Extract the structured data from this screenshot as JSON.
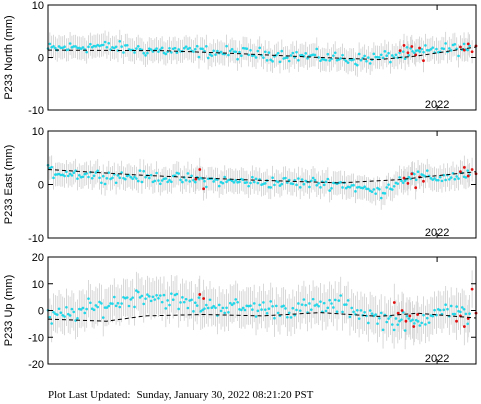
{
  "footer": {
    "label": "Plot Last Updated:",
    "timestamp": "Sunday, January 30, 2022 08:21:20 PST"
  },
  "colors": {
    "cleaned": "#22d6e8",
    "rapid": "#e01010",
    "error_bar": "#cfcfcf",
    "trend": "#000000"
  },
  "chart_data": [
    {
      "type": "scatter",
      "ylabel": "P233 North (mm)",
      "ylim": [
        -10,
        10
      ],
      "yticks": [
        -10,
        0,
        10
      ],
      "xlim": [
        2020.0,
        2022.2
      ],
      "xtick_values": [
        2022.0
      ],
      "xtick_labels": [
        "2022"
      ],
      "trend": [
        [
          2020.0,
          1.4
        ],
        [
          2020.6,
          1.3
        ],
        [
          2021.0,
          0.7
        ],
        [
          2021.4,
          0.0
        ],
        [
          2021.7,
          -0.4
        ],
        [
          2021.9,
          0.3
        ],
        [
          2022.2,
          2.0
        ]
      ],
      "cyan_bands": [
        [
          2020.0,
          1.6
        ],
        [
          2020.25,
          2.2
        ],
        [
          2020.5,
          1.4
        ],
        [
          2020.75,
          1.2
        ],
        [
          2021.0,
          0.8
        ],
        [
          2021.3,
          0.3
        ],
        [
          2021.6,
          -0.4
        ],
        [
          2021.85,
          0.6
        ],
        [
          2022.0,
          1.5
        ],
        [
          2022.2,
          1.8
        ]
      ],
      "cyan_spread": 1.7,
      "error_bar": 2.2,
      "red_series": [
        [
          2021.81,
          1.3
        ],
        [
          2021.83,
          2.3
        ],
        [
          2021.85,
          0.9
        ],
        [
          2021.87,
          2.1
        ],
        [
          2021.89,
          0.5
        ],
        [
          2021.91,
          1.8
        ],
        [
          2021.93,
          -0.6
        ],
        [
          2022.12,
          2.0
        ],
        [
          2022.14,
          1.4
        ],
        [
          2022.16,
          2.6
        ],
        [
          2022.18,
          1.1
        ],
        [
          2022.2,
          2.2
        ]
      ]
    },
    {
      "type": "scatter",
      "ylabel": "P233 East (mm)",
      "ylim": [
        -10,
        10
      ],
      "yticks": [
        -10,
        0,
        10
      ],
      "xlim": [
        2020.0,
        2022.2
      ],
      "xtick_values": [
        2022.0
      ],
      "xtick_labels": [
        "2022"
      ],
      "trend": [
        [
          2020.0,
          2.8
        ],
        [
          2020.5,
          1.7
        ],
        [
          2021.0,
          0.9
        ],
        [
          2021.5,
          0.3
        ],
        [
          2021.8,
          0.9
        ],
        [
          2022.2,
          2.4
        ]
      ],
      "cyan_bands": [
        [
          2020.0,
          2.4
        ],
        [
          2020.3,
          1.6
        ],
        [
          2020.6,
          1.2
        ],
        [
          2020.9,
          0.6
        ],
        [
          2021.2,
          0.4
        ],
        [
          2021.5,
          0.2
        ],
        [
          2021.7,
          -1.5
        ],
        [
          2021.85,
          1.6
        ],
        [
          2022.0,
          1.2
        ],
        [
          2022.2,
          2.0
        ]
      ],
      "cyan_spread": 1.6,
      "error_bar": 2.2,
      "red_series": [
        [
          2020.76,
          1.0
        ],
        [
          2020.78,
          2.8
        ],
        [
          2020.8,
          -0.8
        ],
        [
          2021.83,
          1.2
        ],
        [
          2021.85,
          0.2
        ],
        [
          2021.87,
          2.0
        ],
        [
          2021.89,
          -0.6
        ],
        [
          2021.91,
          1.4
        ],
        [
          2021.93,
          0.6
        ],
        [
          2022.12,
          2.4
        ],
        [
          2022.14,
          3.2
        ],
        [
          2022.16,
          1.6
        ],
        [
          2022.18,
          2.8
        ],
        [
          2022.2,
          2.0
        ]
      ]
    },
    {
      "type": "scatter",
      "ylabel": "P233 Up (mm)",
      "ylim": [
        -20,
        20
      ],
      "yticks": [
        -20,
        -10,
        0,
        10,
        20
      ],
      "xlim": [
        2020.0,
        2022.2
      ],
      "xtick_values": [
        2022.0
      ],
      "xtick_labels": [
        "2022"
      ],
      "trend": [
        [
          2020.0,
          -3.2
        ],
        [
          2020.3,
          -4.0
        ],
        [
          2020.5,
          -2.0
        ],
        [
          2020.8,
          -1.5
        ],
        [
          2021.1,
          -2.0
        ],
        [
          2021.4,
          -0.8
        ],
        [
          2021.7,
          -2.2
        ],
        [
          2021.9,
          -1.0
        ],
        [
          2022.2,
          -2.8
        ]
      ],
      "cyan_bands": [
        [
          2020.0,
          -3.0
        ],
        [
          2020.25,
          1.0
        ],
        [
          2020.5,
          6.0
        ],
        [
          2020.75,
          2.0
        ],
        [
          2021.0,
          1.0
        ],
        [
          2021.25,
          0.5
        ],
        [
          2021.5,
          2.0
        ],
        [
          2021.7,
          -3.0
        ],
        [
          2021.9,
          -5.0
        ],
        [
          2022.0,
          1.0
        ],
        [
          2022.2,
          -3.0
        ]
      ],
      "cyan_spread": 5.0,
      "error_bar": 7.0,
      "red_series": [
        [
          2020.78,
          6.0
        ],
        [
          2020.8,
          4.5
        ],
        [
          2021.78,
          3.0
        ],
        [
          2021.8,
          -1.0
        ],
        [
          2021.82,
          0.0
        ],
        [
          2021.84,
          -4.0
        ],
        [
          2021.86,
          -2.0
        ],
        [
          2021.88,
          -6.0
        ],
        [
          2021.9,
          -1.5
        ],
        [
          2022.1,
          -4.0
        ],
        [
          2022.12,
          -2.0
        ],
        [
          2022.14,
          -6.0
        ],
        [
          2022.16,
          -3.0
        ],
        [
          2022.18,
          8.0
        ],
        [
          2022.2,
          -1.0
        ]
      ]
    }
  ]
}
